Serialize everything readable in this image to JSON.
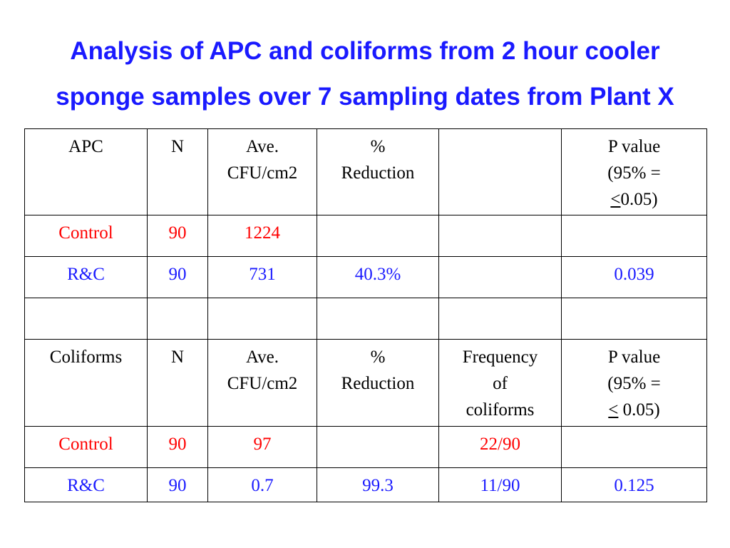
{
  "title": {
    "line1": "Analysis of APC and coliforms from 2 hour cooler",
    "line2": "sponge samples over 7 sampling dates from Plant X"
  },
  "colors": {
    "title": "#1a1aff",
    "control": "#ff0000",
    "rc": "#1a1aff",
    "header": "#000000"
  },
  "apc": {
    "header": {
      "label": "APC",
      "n": "N",
      "ave_1": "Ave.",
      "ave_2": "CFU/cm2",
      "red_1": "%",
      "red_2": "Reduction",
      "freq": "",
      "p_1": "P value",
      "p_2": "(95% =",
      "p_lt": "<",
      "p_3": "0.05",
      "p_close": ")"
    },
    "rows": [
      {
        "label": "Control",
        "n": "90",
        "ave": "1224",
        "reduction": "",
        "freq": "",
        "p": ""
      },
      {
        "label": "R&C",
        "n": "90",
        "ave": "731",
        "reduction": "40.3%",
        "freq": "",
        "p": "0.039"
      }
    ]
  },
  "coliforms": {
    "header": {
      "label": "Coliforms",
      "n": "N",
      "ave_1": "Ave.",
      "ave_2": "CFU/cm2",
      "red_1": "%",
      "red_2": "Reduction",
      "freq_1": "Frequency",
      "freq_2": "of",
      "freq_3": "coliforms",
      "p_1": "P value",
      "p_2": "(95% =",
      "p_lt": "<",
      "p_3": " 0.05",
      "p_close": ")"
    },
    "rows": [
      {
        "label": "Control",
        "n": "90",
        "ave": "97",
        "reduction": "",
        "freq": "22/90",
        "p": ""
      },
      {
        "label": "R&C",
        "n": "90",
        "ave": "0.7",
        "reduction": "99.3",
        "freq": "11/90",
        "p": "0.125"
      }
    ]
  }
}
